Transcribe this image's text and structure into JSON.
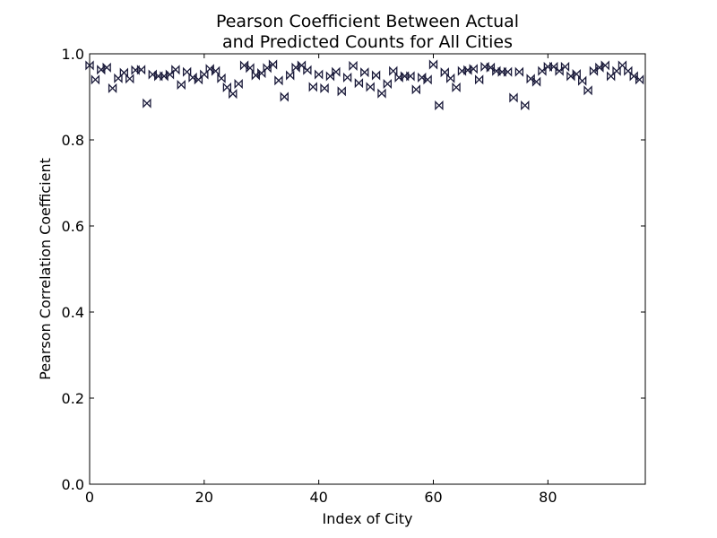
{
  "chart_data": {
    "type": "scatter",
    "title": [
      "Pearson Coefficient Between Actual",
      "and Predicted Counts for All Cities"
    ],
    "xlabel": "Index of City",
    "ylabel": "Pearson Correlation Coefficient",
    "xlim": [
      0,
      97
    ],
    "ylim": [
      0.0,
      1.0
    ],
    "xticks": [
      0,
      20,
      40,
      60,
      80
    ],
    "xtick_labels": [
      "0",
      "20",
      "40",
      "60",
      "80"
    ],
    "yticks": [
      0.0,
      0.2,
      0.4,
      0.6,
      0.8,
      1.0
    ],
    "ytick_labels": [
      "0.0",
      "0.2",
      "0.4",
      "0.6",
      "0.8",
      "1.0"
    ],
    "grid": false,
    "marker": "bowtie",
    "marker_color": "#1a1a3a",
    "x": [
      0,
      1,
      2,
      3,
      4,
      5,
      6,
      7,
      8,
      9,
      10,
      11,
      12,
      13,
      14,
      15,
      16,
      17,
      18,
      19,
      20,
      21,
      22,
      23,
      24,
      25,
      26,
      27,
      28,
      29,
      30,
      31,
      32,
      33,
      34,
      35,
      36,
      37,
      38,
      39,
      40,
      41,
      42,
      43,
      44,
      45,
      46,
      47,
      48,
      49,
      50,
      51,
      52,
      53,
      54,
      55,
      56,
      57,
      58,
      59,
      60,
      61,
      62,
      63,
      64,
      65,
      66,
      67,
      68,
      69,
      70,
      71,
      72,
      73,
      74,
      75,
      76,
      77,
      78,
      79,
      80,
      81,
      82,
      83,
      84,
      85,
      86,
      87,
      88,
      89,
      90,
      91,
      92,
      93,
      94,
      95,
      96
    ],
    "y": [
      0.973,
      0.94,
      0.963,
      0.968,
      0.92,
      0.943,
      0.956,
      0.942,
      0.962,
      0.963,
      0.885,
      0.952,
      0.948,
      0.948,
      0.952,
      0.963,
      0.928,
      0.958,
      0.945,
      0.94,
      0.952,
      0.965,
      0.96,
      0.943,
      0.922,
      0.907,
      0.93,
      0.973,
      0.967,
      0.95,
      0.955,
      0.967,
      0.975,
      0.938,
      0.9,
      0.95,
      0.968,
      0.973,
      0.962,
      0.923,
      0.952,
      0.92,
      0.948,
      0.958,
      0.913,
      0.945,
      0.972,
      0.932,
      0.957,
      0.923,
      0.95,
      0.908,
      0.93,
      0.96,
      0.945,
      0.948,
      0.948,
      0.917,
      0.945,
      0.94,
      0.975,
      0.88,
      0.957,
      0.943,
      0.922,
      0.96,
      0.962,
      0.965,
      0.94,
      0.97,
      0.968,
      0.96,
      0.958,
      0.958,
      0.898,
      0.958,
      0.88,
      0.942,
      0.935,
      0.96,
      0.97,
      0.97,
      0.96,
      0.97,
      0.948,
      0.953,
      0.937,
      0.915,
      0.96,
      0.968,
      0.973,
      0.948,
      0.96,
      0.973,
      0.96,
      0.948,
      0.94
    ]
  }
}
